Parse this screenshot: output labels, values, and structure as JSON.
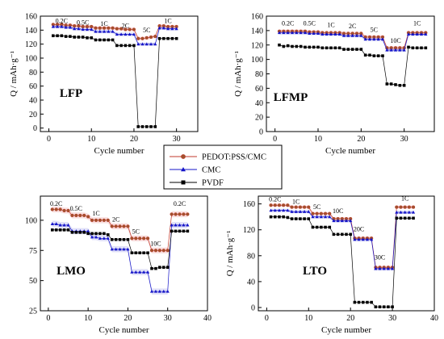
{
  "legend": {
    "position": "center",
    "entries": [
      {
        "name": "PEDOT:PSS/CMC",
        "marker": "circle",
        "color": "#c0392b",
        "fill": "#a0522d"
      },
      {
        "name": "CMC",
        "marker": "triangle",
        "color": "#1515c8"
      },
      {
        "name": "PVDF",
        "marker": "square",
        "color": "#000000"
      }
    ]
  },
  "chart_data": [
    {
      "type": "line",
      "panel_label": "LFP",
      "xlabel": "Cycle number",
      "ylabel": "Q / mAh·g⁻¹",
      "xlim": [
        -2,
        35
      ],
      "ylim": [
        -5,
        160
      ],
      "xticks": [
        0,
        10,
        20,
        30
      ],
      "yticks": [
        0,
        20,
        40,
        60,
        80,
        100,
        120,
        140,
        160
      ],
      "rate_labels": [
        {
          "text": "0.2C",
          "x": 3,
          "y": 150
        },
        {
          "text": "0.5C",
          "x": 8,
          "y": 148
        },
        {
          "text": "1C",
          "x": 13,
          "y": 146
        },
        {
          "text": "2C",
          "x": 18,
          "y": 143
        },
        {
          "text": "5C",
          "x": 23,
          "y": 137
        },
        {
          "text": "1C",
          "x": 28,
          "y": 150
        }
      ],
      "series": [
        {
          "name": "PEDOT:PSS/CMC",
          "x": [
            1,
            2,
            3,
            4,
            5,
            6,
            7,
            8,
            9,
            10,
            11,
            12,
            13,
            14,
            15,
            16,
            17,
            18,
            19,
            20,
            21,
            22,
            23,
            24,
            25,
            26,
            27,
            28,
            29,
            30
          ],
          "values": [
            148,
            148,
            148,
            147,
            147,
            146,
            146,
            145,
            145,
            145,
            143,
            143,
            143,
            143,
            143,
            142,
            142,
            141,
            141,
            141,
            128,
            128,
            129,
            130,
            131,
            146,
            146,
            145,
            145,
            145
          ]
        },
        {
          "name": "CMC",
          "x": [
            1,
            2,
            3,
            4,
            5,
            6,
            7,
            8,
            9,
            10,
            11,
            12,
            13,
            14,
            15,
            16,
            17,
            18,
            19,
            20,
            21,
            22,
            23,
            24,
            25,
            26,
            27,
            28,
            29,
            30
          ],
          "values": [
            145,
            145,
            145,
            144,
            144,
            142,
            142,
            141,
            141,
            141,
            138,
            138,
            138,
            138,
            138,
            134,
            134,
            134,
            134,
            134,
            120,
            120,
            120,
            120,
            120,
            143,
            143,
            142,
            142,
            142
          ]
        },
        {
          "name": "PVDF",
          "x": [
            1,
            2,
            3,
            4,
            5,
            6,
            7,
            8,
            9,
            10,
            11,
            12,
            13,
            14,
            15,
            16,
            17,
            18,
            19,
            20,
            21,
            22,
            23,
            24,
            25,
            26,
            27,
            28,
            29,
            30
          ],
          "values": [
            132,
            132,
            132,
            131,
            131,
            130,
            130,
            130,
            129,
            129,
            126,
            126,
            126,
            126,
            126,
            118,
            118,
            118,
            118,
            118,
            2,
            2,
            2,
            2,
            2,
            128,
            128,
            128,
            128,
            128
          ]
        }
      ]
    },
    {
      "type": "line",
      "panel_label": "LFMP",
      "xlabel": "Cycle number",
      "ylabel": "Q / mAh·g⁻¹",
      "xlim": [
        -2,
        37
      ],
      "ylim": [
        0,
        160
      ],
      "xticks": [
        0,
        10,
        20,
        30
      ],
      "yticks": [
        0,
        20,
        40,
        60,
        80,
        100,
        120,
        140,
        160
      ],
      "rate_labels": [
        {
          "text": "0.2C",
          "x": 3,
          "y": 147
        },
        {
          "text": "0.5C",
          "x": 8,
          "y": 147
        },
        {
          "text": "1C",
          "x": 13,
          "y": 145
        },
        {
          "text": "2C",
          "x": 18,
          "y": 143
        },
        {
          "text": "5C",
          "x": 23,
          "y": 138
        },
        {
          "text": "10C",
          "x": 28,
          "y": 123
        },
        {
          "text": "1C",
          "x": 33,
          "y": 147
        }
      ],
      "series": [
        {
          "name": "PEDOT:PSS/CMC",
          "x": [
            1,
            2,
            3,
            4,
            5,
            6,
            7,
            8,
            9,
            10,
            11,
            12,
            13,
            14,
            15,
            16,
            17,
            18,
            19,
            20,
            21,
            22,
            23,
            24,
            25,
            26,
            27,
            28,
            29,
            30,
            31,
            32,
            33,
            34,
            35
          ],
          "values": [
            139,
            139,
            139,
            139,
            139,
            139,
            139,
            138,
            138,
            138,
            137,
            137,
            137,
            137,
            137,
            136,
            136,
            136,
            136,
            136,
            131,
            131,
            131,
            131,
            131,
            116,
            116,
            116,
            116,
            116,
            137,
            137,
            137,
            137,
            137
          ]
        },
        {
          "name": "CMC",
          "x": [
            1,
            2,
            3,
            4,
            5,
            6,
            7,
            8,
            9,
            10,
            11,
            12,
            13,
            14,
            15,
            16,
            17,
            18,
            19,
            20,
            21,
            22,
            23,
            24,
            25,
            26,
            27,
            28,
            29,
            30,
            31,
            32,
            33,
            34,
            35
          ],
          "values": [
            137,
            137,
            137,
            137,
            137,
            137,
            137,
            136,
            136,
            136,
            135,
            135,
            135,
            135,
            135,
            133,
            133,
            133,
            133,
            133,
            128,
            128,
            128,
            128,
            128,
            113,
            113,
            113,
            113,
            113,
            135,
            135,
            135,
            135,
            135
          ]
        },
        {
          "name": "PVDF",
          "x": [
            1,
            2,
            3,
            4,
            5,
            6,
            7,
            8,
            9,
            10,
            11,
            12,
            13,
            14,
            15,
            16,
            17,
            18,
            19,
            20,
            21,
            22,
            23,
            24,
            25,
            26,
            27,
            28,
            29,
            30,
            31,
            32,
            33,
            34,
            35
          ],
          "values": [
            120,
            118,
            119,
            118,
            118,
            118,
            117,
            117,
            117,
            117,
            116,
            116,
            116,
            116,
            116,
            114,
            114,
            114,
            114,
            114,
            106,
            106,
            105,
            105,
            105,
            66,
            66,
            65,
            64,
            64,
            117,
            116,
            116,
            116,
            116
          ]
        }
      ]
    },
    {
      "type": "line",
      "panel_label": "LMO",
      "xlabel": "Cycle number",
      "ylabel": "",
      "xlim": [
        -2,
        40
      ],
      "ylim": [
        25,
        120
      ],
      "xticks": [
        0,
        10,
        20,
        30,
        40
      ],
      "yticks": [
        25,
        50,
        75,
        100
      ],
      "rate_labels": [
        {
          "text": "0.2C",
          "x": 2,
          "y": 112
        },
        {
          "text": "0.5C",
          "x": 7,
          "y": 108
        },
        {
          "text": "1C",
          "x": 12,
          "y": 104
        },
        {
          "text": "2C",
          "x": 17,
          "y": 99
        },
        {
          "text": "5C",
          "x": 22,
          "y": 89
        },
        {
          "text": "10C",
          "x": 27,
          "y": 79
        },
        {
          "text": "0.2C",
          "x": 33,
          "y": 112
        }
      ],
      "series": [
        {
          "name": "PEDOT:PSS/CMC",
          "x": [
            1,
            2,
            3,
            4,
            5,
            6,
            7,
            8,
            9,
            10,
            11,
            12,
            13,
            14,
            15,
            16,
            17,
            18,
            19,
            20,
            21,
            22,
            23,
            24,
            25,
            26,
            27,
            28,
            29,
            30,
            31,
            32,
            33,
            34,
            35
          ],
          "values": [
            109,
            109,
            109,
            108,
            108,
            104,
            104,
            104,
            104,
            103,
            100,
            100,
            100,
            100,
            100,
            95,
            95,
            95,
            95,
            95,
            85,
            85,
            85,
            85,
            85,
            75,
            75,
            75,
            75,
            75,
            105,
            105,
            105,
            105,
            105
          ]
        },
        {
          "name": "CMC",
          "x": [
            1,
            2,
            3,
            4,
            5,
            6,
            7,
            8,
            9,
            10,
            11,
            12,
            13,
            14,
            15,
            16,
            17,
            18,
            19,
            20,
            21,
            22,
            23,
            24,
            25,
            26,
            27,
            28,
            29,
            30,
            31,
            32,
            33,
            34,
            35
          ],
          "values": [
            97,
            97,
            96,
            96,
            96,
            91,
            91,
            91,
            91,
            91,
            86,
            86,
            85,
            85,
            85,
            76,
            76,
            76,
            76,
            76,
            57,
            57,
            57,
            57,
            57,
            41,
            41,
            41,
            41,
            41,
            96,
            96,
            96,
            96,
            96
          ]
        },
        {
          "name": "PVDF",
          "x": [
            1,
            2,
            3,
            4,
            5,
            6,
            7,
            8,
            9,
            10,
            11,
            12,
            13,
            14,
            15,
            16,
            17,
            18,
            19,
            20,
            21,
            22,
            23,
            24,
            25,
            26,
            27,
            28,
            29,
            30,
            31,
            32,
            33,
            34,
            35
          ],
          "values": [
            92,
            92,
            92,
            92,
            92,
            90,
            90,
            90,
            90,
            89,
            89,
            89,
            89,
            89,
            88,
            84,
            84,
            84,
            84,
            84,
            73,
            73,
            73,
            73,
            73,
            60,
            60,
            61,
            61,
            61,
            91,
            91,
            91,
            91,
            91
          ]
        }
      ]
    },
    {
      "type": "line",
      "panel_label": "LTO",
      "xlabel": "Cycle number",
      "ylabel": "Q / mAh·g⁻¹",
      "xlim": [
        -2,
        40
      ],
      "ylim": [
        -5,
        172
      ],
      "xticks": [
        0,
        10,
        20,
        30,
        40
      ],
      "yticks": [
        0,
        40,
        80,
        120,
        160
      ],
      "rate_labels": [
        {
          "text": "0.2C",
          "x": 2,
          "y": 164
        },
        {
          "text": "1C",
          "x": 7,
          "y": 160
        },
        {
          "text": "5C",
          "x": 12,
          "y": 152
        },
        {
          "text": "10C",
          "x": 17,
          "y": 146
        },
        {
          "text": "20C",
          "x": 22,
          "y": 118
        },
        {
          "text": "30C",
          "x": 27,
          "y": 74
        },
        {
          "text": "1C",
          "x": 33,
          "y": 165
        }
      ],
      "series": [
        {
          "name": "PEDOT:PSS/CMC",
          "x": [
            1,
            2,
            3,
            4,
            5,
            6,
            7,
            8,
            9,
            10,
            11,
            12,
            13,
            14,
            15,
            16,
            17,
            18,
            19,
            20,
            21,
            22,
            23,
            24,
            25,
            26,
            27,
            28,
            29,
            30,
            31,
            32,
            33,
            34,
            35
          ],
          "values": [
            158,
            158,
            158,
            158,
            158,
            155,
            155,
            155,
            155,
            155,
            145,
            145,
            145,
            145,
            145,
            137,
            137,
            137,
            137,
            137,
            107,
            107,
            107,
            107,
            107,
            62,
            62,
            62,
            62,
            62,
            155,
            155,
            155,
            155,
            155
          ]
        },
        {
          "name": "CMC",
          "x": [
            1,
            2,
            3,
            4,
            5,
            6,
            7,
            8,
            9,
            10,
            11,
            12,
            13,
            14,
            15,
            16,
            17,
            18,
            19,
            20,
            21,
            22,
            23,
            24,
            25,
            26,
            27,
            28,
            29,
            30,
            31,
            32,
            33,
            34,
            35
          ],
          "values": [
            150,
            150,
            150,
            150,
            150,
            148,
            148,
            148,
            148,
            148,
            140,
            140,
            140,
            140,
            140,
            134,
            134,
            134,
            134,
            134,
            105,
            105,
            105,
            105,
            105,
            60,
            60,
            60,
            60,
            60,
            147,
            147,
            147,
            147,
            147
          ]
        },
        {
          "name": "PVDF",
          "x": [
            1,
            2,
            3,
            4,
            5,
            6,
            7,
            8,
            9,
            10,
            11,
            12,
            13,
            14,
            15,
            16,
            17,
            18,
            19,
            20,
            21,
            22,
            23,
            24,
            25,
            26,
            27,
            28,
            29,
            30,
            31,
            32,
            33,
            34,
            35
          ],
          "values": [
            140,
            140,
            140,
            140,
            139,
            137,
            137,
            137,
            137,
            137,
            124,
            124,
            124,
            124,
            124,
            113,
            113,
            113,
            113,
            113,
            8,
            8,
            8,
            8,
            8,
            1,
            1,
            1,
            1,
            1,
            138,
            138,
            138,
            138,
            138
          ]
        }
      ]
    }
  ]
}
